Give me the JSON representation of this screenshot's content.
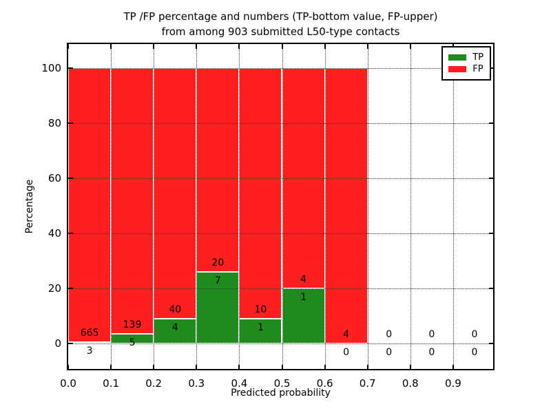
{
  "figure": {
    "title_line1": "TP /FP percentage and numbers (TP-bottom value, FP-upper)",
    "title_line2": "from among 903 submitted L50-type contacts",
    "xlabel": "Predicted probability",
    "ylabel": "Percentage"
  },
  "chart_data": {
    "type": "bar",
    "stacked": true,
    "title": "TP /FP percentage and numbers (TP-bottom value, FP-upper) from among 903 submitted L50-type contacts",
    "total_contacts": 903,
    "xlabel": "Predicted probability",
    "ylabel": "Percentage",
    "xlim": [
      0.0,
      1.0
    ],
    "ylim": [
      -10,
      109
    ],
    "x_ticks": [
      "0.0",
      "0.1",
      "0.2",
      "0.3",
      "0.4",
      "0.5",
      "0.6",
      "0.7",
      "0.8",
      "0.9"
    ],
    "y_ticks": [
      0,
      20,
      40,
      60,
      80,
      100
    ],
    "grid": "dotted",
    "legend_position": "upper right",
    "colors": {
      "tp": "#1f8b1f",
      "fp": "#ff1f1f",
      "bar_edge": "#ffffff"
    },
    "legend": [
      {
        "label": "TP",
        "color": "#1f8b1f"
      },
      {
        "label": "FP",
        "color": "#ff1f1f"
      }
    ],
    "note": "Each bar is normalized to 100%; green bottom segment = TP fraction, red upper segment = FP fraction. Numbers printed at segment boundary: FP count above, TP count below.",
    "bins": [
      {
        "range": [
          0.0,
          0.1
        ],
        "tp": 3,
        "fp": 665
      },
      {
        "range": [
          0.1,
          0.2
        ],
        "tp": 5,
        "fp": 139
      },
      {
        "range": [
          0.2,
          0.3
        ],
        "tp": 4,
        "fp": 40
      },
      {
        "range": [
          0.3,
          0.4
        ],
        "tp": 7,
        "fp": 20
      },
      {
        "range": [
          0.4,
          0.5
        ],
        "tp": 1,
        "fp": 10
      },
      {
        "range": [
          0.5,
          0.6
        ],
        "tp": 1,
        "fp": 4
      },
      {
        "range": [
          0.6,
          0.7
        ],
        "tp": 0,
        "fp": 4
      },
      {
        "range": [
          0.7,
          0.8
        ],
        "tp": 0,
        "fp": 0
      },
      {
        "range": [
          0.8,
          0.9
        ],
        "tp": 0,
        "fp": 0
      },
      {
        "range": [
          0.9,
          1.0
        ],
        "tp": 0,
        "fp": 0
      }
    ]
  }
}
